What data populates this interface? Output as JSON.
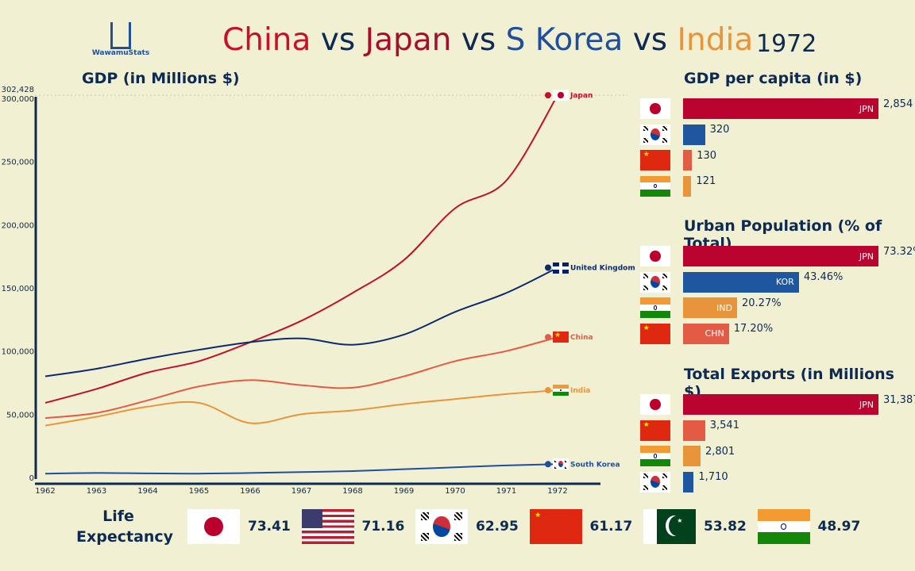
{
  "logo": {
    "text": "WawamuStats"
  },
  "header": {
    "title_parts": [
      {
        "text": "China",
        "color": "#c8102e"
      },
      {
        "text": " vs ",
        "color": "#0d2a52"
      },
      {
        "text": "Japan",
        "color": "#a50f2d"
      },
      {
        "text": " vs ",
        "color": "#0d2a52"
      },
      {
        "text": "S Korea",
        "color": "#1f4f9c"
      },
      {
        "text": " vs ",
        "color": "#0d2a52"
      },
      {
        "text": "India",
        "color": "#e8943a"
      }
    ],
    "year": "1972"
  },
  "chart_data": {
    "type": "line",
    "title": "GDP (in Millions $)",
    "x": [
      1962,
      1963,
      1964,
      1965,
      1966,
      1967,
      1968,
      1969,
      1970,
      1971,
      1972
    ],
    "ylim": [
      0,
      302428
    ],
    "yticks": [
      0,
      50000,
      100000,
      150000,
      200000,
      250000,
      300000
    ],
    "ytick_labels": [
      "0",
      "50,000",
      "100,000",
      "150,000",
      "200,000",
      "250,000",
      "300,000"
    ],
    "max_label": "302,428",
    "series": [
      {
        "name": "Japan",
        "color": "#c0102e",
        "values": [
          59000,
          70000,
          83000,
          92000,
          107000,
          124000,
          146000,
          172000,
          213000,
          235000,
          302428
        ]
      },
      {
        "name": "United Kingdom",
        "color": "#0d2a6e",
        "values": [
          80000,
          86000,
          94000,
          101000,
          107000,
          110000,
          105000,
          113000,
          131000,
          146000,
          166000
        ]
      },
      {
        "name": "China",
        "color": "#e35b45",
        "values": [
          47000,
          51000,
          61000,
          72000,
          77000,
          73000,
          71000,
          80000,
          92000,
          100000,
          111000
        ]
      },
      {
        "name": "India",
        "color": "#e8943a",
        "values": [
          41000,
          48000,
          56000,
          59000,
          43000,
          50000,
          53000,
          58000,
          62000,
          66000,
          69000
        ]
      },
      {
        "name": "South Korea",
        "color": "#1f4f9c",
        "values": [
          3000,
          3500,
          3200,
          3000,
          3500,
          4200,
          5000,
          6500,
          8000,
          9500,
          10500
        ]
      }
    ]
  },
  "panels": [
    {
      "title": "GDP per capita (in $)",
      "max": 2854,
      "rows": [
        {
          "flag": "japan",
          "code": "JPN",
          "value": 2854,
          "label": "2,854",
          "color": "#bb0330"
        },
        {
          "flag": "korea",
          "code": "",
          "value": 320,
          "label": "320",
          "color": "#1f56a0"
        },
        {
          "flag": "china",
          "code": "",
          "value": 130,
          "label": "130",
          "color": "#e35b45"
        },
        {
          "flag": "india",
          "code": "",
          "value": 121,
          "label": "121",
          "color": "#e8943a"
        }
      ]
    },
    {
      "title": "Urban Population (% of Total)",
      "max": 73.32,
      "rows": [
        {
          "flag": "japan",
          "code": "JPN",
          "value": 73.32,
          "label": "73.32%",
          "color": "#bb0330"
        },
        {
          "flag": "korea",
          "code": "KOR",
          "value": 43.46,
          "label": "43.46%",
          "color": "#1f56a0"
        },
        {
          "flag": "india",
          "code": "IND",
          "value": 20.27,
          "label": "20.27%",
          "color": "#e8943a"
        },
        {
          "flag": "china",
          "code": "CHN",
          "value": 17.2,
          "label": "17.20%",
          "color": "#e35b45"
        }
      ]
    },
    {
      "title": "Total Exports (in Millions $)",
      "max": 31387,
      "rows": [
        {
          "flag": "japan",
          "code": "JPN",
          "value": 31387,
          "label": "31,387",
          "color": "#bb0330"
        },
        {
          "flag": "china",
          "code": "",
          "value": 3541,
          "label": "3,541",
          "color": "#e35b45"
        },
        {
          "flag": "india",
          "code": "",
          "value": 2801,
          "label": "2,801",
          "color": "#e8943a"
        },
        {
          "flag": "korea",
          "code": "",
          "value": 1710,
          "label": "1,710",
          "color": "#1f56a0"
        }
      ]
    }
  ],
  "life": {
    "label": "Life Expectancy",
    "items": [
      {
        "flag": "japan",
        "value": "73.41"
      },
      {
        "flag": "usa",
        "value": "71.16"
      },
      {
        "flag": "korea",
        "value": "62.95"
      },
      {
        "flag": "china",
        "value": "61.17"
      },
      {
        "flag": "pakistan",
        "value": "53.82"
      },
      {
        "flag": "india",
        "value": "48.97"
      }
    ]
  }
}
